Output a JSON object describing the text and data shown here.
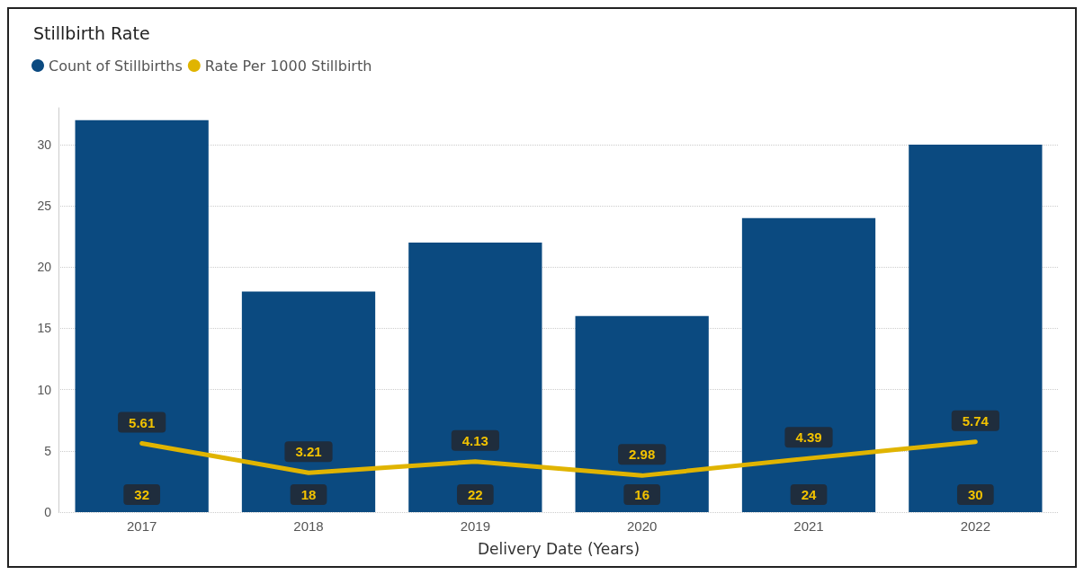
{
  "chart_data": {
    "type": "bar",
    "title": "Stillbirth Rate",
    "xlabel": "Delivery Date (Years)",
    "categories": [
      "2017",
      "2018",
      "2019",
      "2020",
      "2021",
      "2022"
    ],
    "series": [
      {
        "name": "Count of Stillbirths",
        "color": "#0b4a80",
        "values": [
          32,
          18,
          22,
          16,
          24,
          30
        ]
      },
      {
        "name": "Rate Per 1000 Stillbirth",
        "type": "line",
        "color": "#e0b400",
        "values": [
          5.61,
          3.21,
          4.13,
          2.98,
          4.39,
          5.74
        ]
      }
    ],
    "ylim": [
      0,
      33
    ],
    "yticks": [
      0,
      5,
      10,
      15,
      20,
      25,
      30
    ],
    "grid": "y",
    "legend": "top left",
    "data_labels": true,
    "marker": "none"
  }
}
